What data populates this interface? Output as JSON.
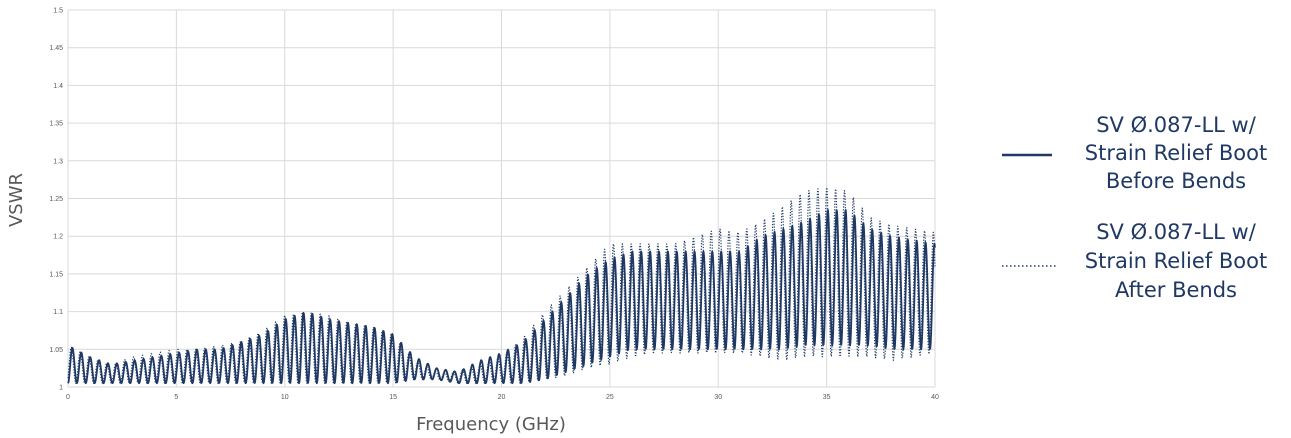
{
  "chart_data": {
    "type": "line",
    "xlabel": "Frequency (GHz)",
    "ylabel": "VSWR",
    "xlim": [
      0,
      40
    ],
    "ylim": [
      1,
      1.5
    ],
    "x_ticks": [
      "0",
      "5",
      "10",
      "15",
      "20",
      "25",
      "30",
      "35",
      "40"
    ],
    "y_ticks": [
      "1",
      "1.05",
      "1.1",
      "1.15",
      "1.2",
      "1.25",
      "1.3",
      "1.35",
      "1.4",
      "1.45",
      "1.5"
    ],
    "grid": true,
    "legend_position": "right",
    "line_color": "#1f3864",
    "series": [
      {
        "name_lines": [
          "SV Ø.087-LL w/",
          "Strain Relief Boot",
          "Before Bends"
        ],
        "style": "solid",
        "x": [
          0,
          1,
          2,
          3,
          4,
          5,
          6,
          7,
          8,
          9,
          10,
          11,
          12,
          13,
          14,
          15,
          16,
          17,
          18,
          19,
          20,
          21,
          22,
          23,
          24,
          25,
          26,
          27,
          28,
          29,
          30,
          31,
          32,
          33,
          34,
          35,
          36,
          37,
          38,
          39,
          40
        ],
        "peak": [
          1.055,
          1.04,
          1.03,
          1.035,
          1.04,
          1.045,
          1.05,
          1.05,
          1.06,
          1.07,
          1.09,
          1.1,
          1.09,
          1.085,
          1.08,
          1.07,
          1.04,
          1.025,
          1.02,
          1.035,
          1.045,
          1.06,
          1.09,
          1.12,
          1.15,
          1.17,
          1.18,
          1.18,
          1.18,
          1.18,
          1.18,
          1.18,
          1.2,
          1.21,
          1.22,
          1.235,
          1.235,
          1.21,
          1.2,
          1.195,
          1.19
        ],
        "trough": [
          1.005,
          1.005,
          1.005,
          1.005,
          1.005,
          1.005,
          1.005,
          1.005,
          1.005,
          1.005,
          1.005,
          1.005,
          1.005,
          1.005,
          1.005,
          1.005,
          1.01,
          1.01,
          1.005,
          1.005,
          1.005,
          1.005,
          1.01,
          1.02,
          1.03,
          1.04,
          1.05,
          1.05,
          1.05,
          1.05,
          1.05,
          1.05,
          1.05,
          1.05,
          1.055,
          1.055,
          1.055,
          1.055,
          1.05,
          1.05,
          1.05
        ]
      },
      {
        "name_lines": [
          "SV Ø.087-LL w/",
          "Strain Relief Boot",
          "After Bends"
        ],
        "style": "dotted",
        "x": [
          0,
          1,
          2,
          3,
          4,
          5,
          6,
          7,
          8,
          9,
          10,
          11,
          12,
          13,
          14,
          15,
          16,
          17,
          18,
          19,
          20,
          21,
          22,
          23,
          24,
          25,
          26,
          27,
          28,
          29,
          30,
          31,
          32,
          33,
          34,
          35,
          36,
          37,
          38,
          39,
          40
        ],
        "peak": [
          1.055,
          1.04,
          1.03,
          1.04,
          1.045,
          1.05,
          1.05,
          1.055,
          1.06,
          1.075,
          1.095,
          1.1,
          1.095,
          1.085,
          1.08,
          1.07,
          1.035,
          1.02,
          1.02,
          1.03,
          1.04,
          1.065,
          1.1,
          1.13,
          1.16,
          1.19,
          1.19,
          1.19,
          1.19,
          1.2,
          1.21,
          1.205,
          1.22,
          1.24,
          1.26,
          1.265,
          1.26,
          1.225,
          1.215,
          1.21,
          1.205
        ],
        "trough": [
          1.005,
          1.005,
          1.005,
          1.005,
          1.005,
          1.005,
          1.005,
          1.005,
          1.005,
          1.005,
          1.005,
          1.005,
          1.005,
          1.005,
          1.005,
          1.005,
          1.01,
          1.01,
          1.005,
          1.005,
          1.005,
          1.005,
          1.01,
          1.015,
          1.025,
          1.03,
          1.04,
          1.045,
          1.045,
          1.045,
          1.045,
          1.045,
          1.04,
          1.035,
          1.04,
          1.04,
          1.04,
          1.04,
          1.035,
          1.04,
          1.045
        ]
      }
    ]
  }
}
